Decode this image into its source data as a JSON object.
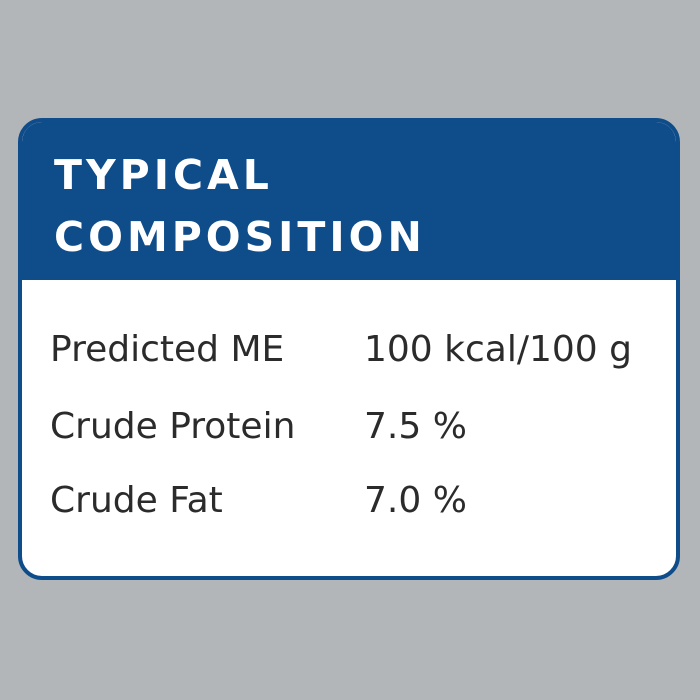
{
  "panel": {
    "title_line_1": "TYPICAL",
    "title_line_2": "COMPOSITION",
    "rows": [
      {
        "label": "Predicted ME",
        "value": "100 kcal/100 g"
      },
      {
        "label": "Crude Protein",
        "value": "7.5 %"
      },
      {
        "label": "Crude Fat",
        "value": "7.0 %"
      }
    ]
  },
  "colors": {
    "background": "#b3b6b8",
    "panel_header": "#0f4c8a",
    "panel_body": "#ffffff",
    "text": "#2b2b2b"
  }
}
